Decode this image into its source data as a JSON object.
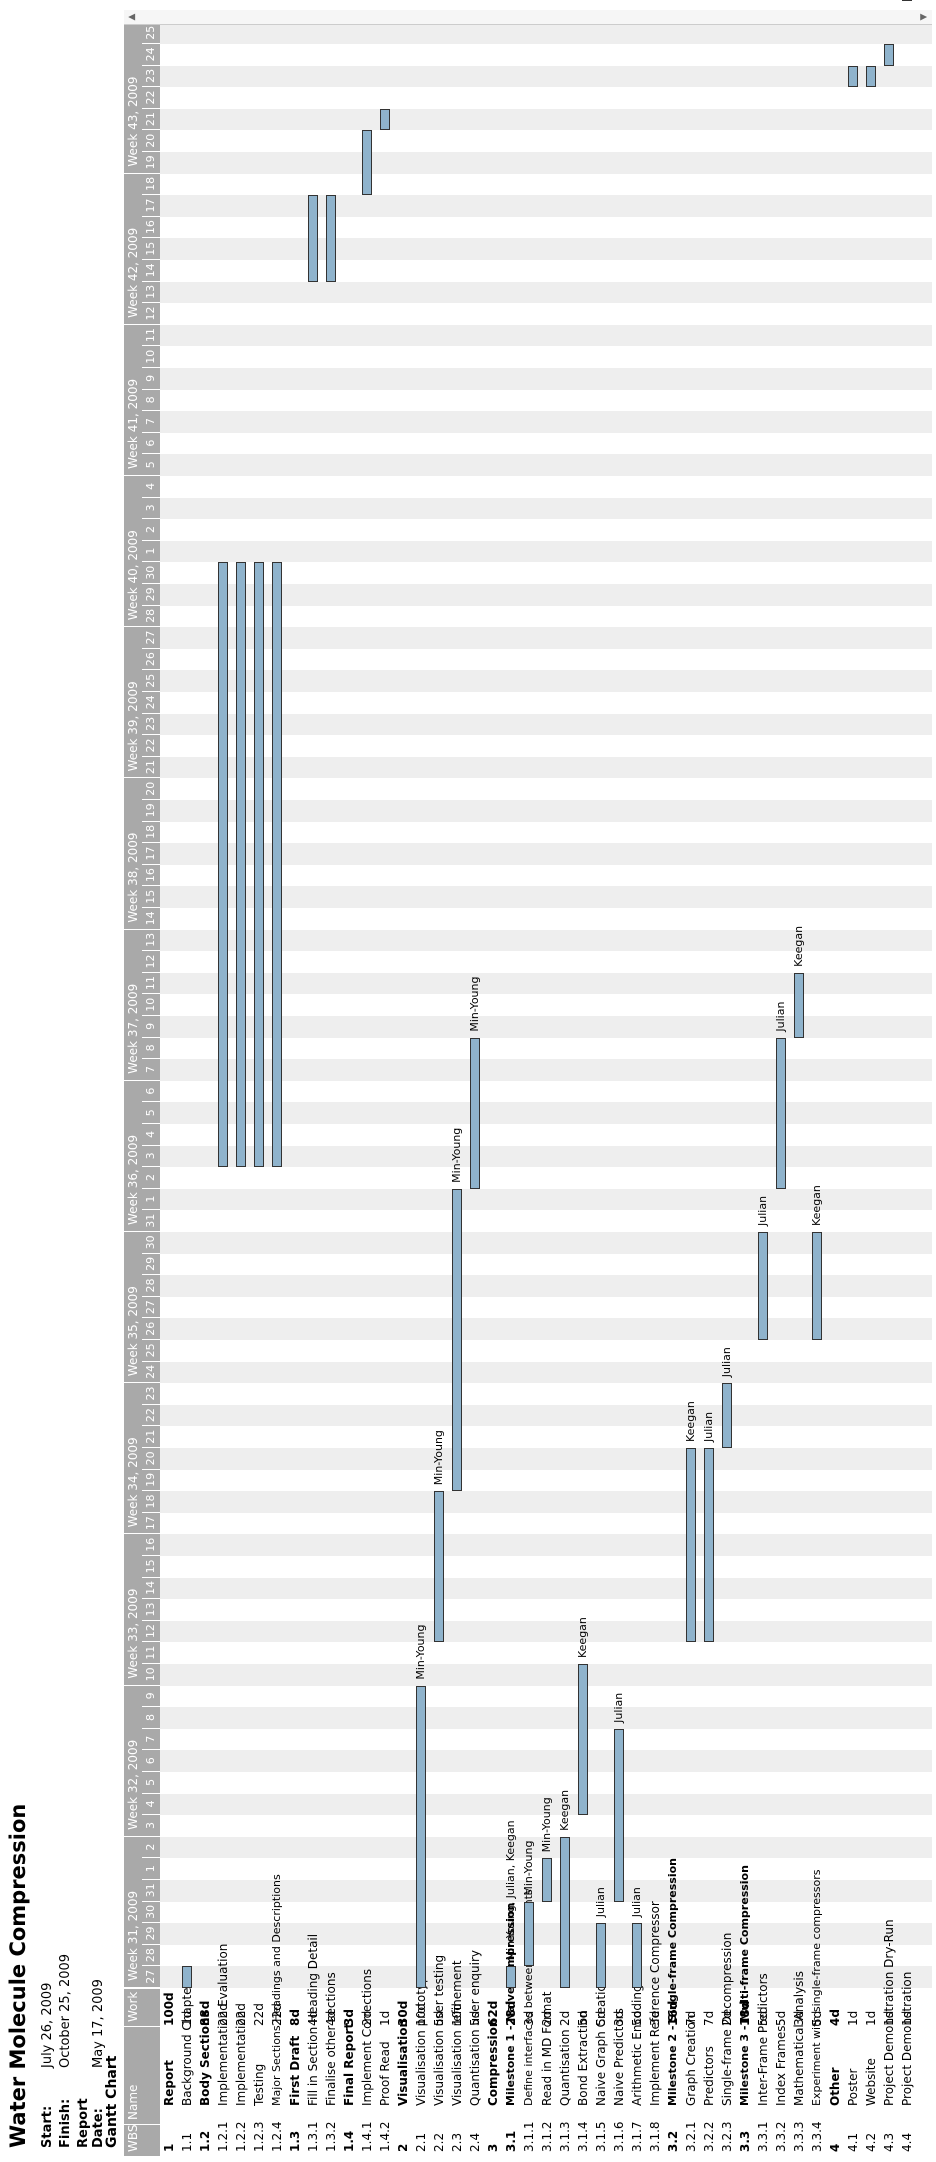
{
  "project": {
    "title": "Water Molecule Compression",
    "start_label": "Start:",
    "start": "July 26, 2009",
    "finish_label": "Finish:",
    "finish": "October 25, 2009",
    "report_label": "Report Date:",
    "report_date": "May 17, 2009"
  },
  "gantt": {
    "title": "Gantt Chart",
    "columns": {
      "wbs": "WBS",
      "name": "Name",
      "work": "Work"
    },
    "weeks": [
      "Week 31, 2009",
      "Week 32, 2009",
      "Week 33, 2009",
      "Week 34, 2009",
      "Week 35, 2009",
      "Week 36, 2009",
      "Week 37, 2009",
      "Week 38, 2009",
      "Week 39, 2009",
      "Week 40, 2009",
      "Week 41, 2009",
      "Week 42, 2009",
      "Week 43, 2009"
    ],
    "days": [
      "27",
      "28",
      "29",
      "30",
      "31",
      "1",
      "2",
      "3",
      "4",
      "5",
      "6",
      "7",
      "8",
      "9",
      "10",
      "11",
      "12",
      "13",
      "14",
      "15",
      "16",
      "17",
      "18",
      "19",
      "20",
      "21",
      "22",
      "23",
      "24",
      "25",
      "26",
      "27",
      "28",
      "29",
      "30",
      "31",
      "1",
      "2",
      "3",
      "4",
      "5",
      "6",
      "7",
      "8",
      "9",
      "10",
      "11",
      "12",
      "13",
      "14",
      "15",
      "16",
      "17",
      "18",
      "19",
      "20",
      "21",
      "22",
      "23",
      "24",
      "25",
      "26",
      "27",
      "28",
      "29",
      "30",
      "1",
      "2",
      "3",
      "4",
      "5",
      "6",
      "7",
      "8",
      "9",
      "10",
      "11",
      "12",
      "13",
      "14",
      "15",
      "16",
      "17",
      "18",
      "19",
      "20",
      "21",
      "22",
      "23",
      "24",
      "25"
    ],
    "tasks": [
      {
        "wbs": "1",
        "name": "Report",
        "work": "100d",
        "bold": true
      },
      {
        "wbs": "1.1",
        "name": "Background Chapter",
        "work": "1d",
        "bars": [
          [
            0,
            1
          ]
        ]
      },
      {
        "wbs": "1.2",
        "name": "Body Sections",
        "work": "88d",
        "bold": true
      },
      {
        "wbs": "1.2.1",
        "name": "Implementation Evaluation",
        "work": "22d",
        "bars": [
          [
            38,
            66
          ]
        ]
      },
      {
        "wbs": "1.2.2",
        "name": "Implementation",
        "work": "22d",
        "bars": [
          [
            38,
            66
          ]
        ]
      },
      {
        "wbs": "1.2.3",
        "name": "Testing",
        "work": "22d",
        "bars": [
          [
            38,
            66
          ]
        ]
      },
      {
        "wbs": "1.2.4",
        "name": "Major Sections Headings and Descriptions",
        "work": "22d",
        "bars": [
          [
            38,
            66
          ]
        ]
      },
      {
        "wbs": "1.3",
        "name": "First Draft",
        "work": "8d",
        "bold": true
      },
      {
        "wbs": "1.3.1",
        "name": "Fill in Section Heading Detail",
        "work": "4d",
        "bars": [
          [
            79,
            83
          ]
        ]
      },
      {
        "wbs": "1.3.2",
        "name": "Finalise other sections",
        "work": "4d",
        "bars": [
          [
            79,
            83
          ]
        ]
      },
      {
        "wbs": "1.4",
        "name": "Final Report",
        "work": "3d",
        "bold": true
      },
      {
        "wbs": "1.4.1",
        "name": "Implement Corrections",
        "work": "2d",
        "bars": [
          [
            83,
            86
          ]
        ]
      },
      {
        "wbs": "1.4.2",
        "name": "Proof Read",
        "work": "1d",
        "bars": [
          [
            86,
            87
          ]
        ]
      },
      {
        "wbs": "2",
        "name": "Visualisation",
        "work": "30d",
        "bold": true
      },
      {
        "wbs": "2.1",
        "name": "Visualisation prototype",
        "work": "10d",
        "bars": [
          [
            0,
            14
          ]
        ],
        "res": "Min-Young"
      },
      {
        "wbs": "2.2",
        "name": "Visualisation user testing",
        "work": "5d",
        "bars": [
          [
            16,
            23
          ]
        ],
        "res": "Min-Young"
      },
      {
        "wbs": "2.3",
        "name": "Visualisation refinement",
        "work": "10d",
        "bars": [
          [
            23,
            37
          ]
        ],
        "res": "Min-Young"
      },
      {
        "wbs": "2.4",
        "name": "Quantisation user enquiry",
        "work": "5d",
        "bars": [
          [
            37,
            44
          ]
        ],
        "res": "Min-Young"
      },
      {
        "wbs": "3",
        "name": "Compression",
        "work": "62d",
        "bold": true
      },
      {
        "wbs": "3.1",
        "name": "Milestone 1 - Naive Compression",
        "work": "28d",
        "bold": true,
        "bars": [
          [
            0,
            1
          ]
        ],
        "res": "Min-Young, Julian, Keegan"
      },
      {
        "wbs": "3.1.1",
        "name": "Define interfaces between components",
        "work": "3d",
        "bars": [
          [
            1,
            4
          ]
        ],
        "res": "Min-Young"
      },
      {
        "wbs": "3.1.2",
        "name": "Read in MD Format",
        "work": "2d",
        "bars": [
          [
            4,
            6
          ]
        ],
        "res": "Min-Young"
      },
      {
        "wbs": "3.1.3",
        "name": "Quantisation",
        "work": "2d",
        "bars": [
          [
            0,
            7
          ]
        ],
        "res": "Keegan"
      },
      {
        "wbs": "3.1.4",
        "name": "Bond Extraction",
        "work": "5d",
        "bars": [
          [
            8,
            15
          ]
        ],
        "res": "Keegan"
      },
      {
        "wbs": "3.1.5",
        "name": "Naive Graph Creation",
        "work": "5d",
        "bars": [
          [
            0,
            3
          ]
        ],
        "res": "Julian"
      },
      {
        "wbs": "3.1.6",
        "name": "Naive Predictors",
        "work": "3d",
        "bars": [
          [
            4,
            12
          ]
        ],
        "res": "Julian"
      },
      {
        "wbs": "3.1.7",
        "name": "Arithmetic Encoding",
        "work": "5d",
        "bars": [
          [
            0,
            3
          ]
        ],
        "res": "Julian"
      },
      {
        "wbs": "3.1.8",
        "name": "Implement Reference Compressor",
        "work": "3d"
      },
      {
        "wbs": "3.2",
        "name": "Milestone 2 - Single-frame Compression",
        "work": "16d",
        "bold": true
      },
      {
        "wbs": "3.2.1",
        "name": "Graph Creation",
        "work": "7d",
        "bars": [
          [
            16,
            25
          ]
        ],
        "res": "Keegan"
      },
      {
        "wbs": "3.2.2",
        "name": "Predictors",
        "work": "7d",
        "bars": [
          [
            16,
            25
          ]
        ],
        "res": "Julian"
      },
      {
        "wbs": "3.2.3",
        "name": "Single-frame Decompression",
        "work": "2d",
        "bars": [
          [
            25,
            28
          ]
        ],
        "res": "Julian"
      },
      {
        "wbs": "3.3",
        "name": "Milestone 3 - Multi-frame Compression",
        "work": "18d",
        "bold": true
      },
      {
        "wbs": "3.3.1",
        "name": "Inter-Frame Predictors",
        "work": "5d",
        "bars": [
          [
            30,
            35
          ]
        ],
        "res": "Julian"
      },
      {
        "wbs": "3.3.2",
        "name": "Index Frames",
        "work": "5d",
        "bars": [
          [
            37,
            44
          ]
        ],
        "res": "Julian"
      },
      {
        "wbs": "3.3.3",
        "name": "Mathematical Analysis",
        "work": "3d",
        "bars": [
          [
            44,
            47
          ]
        ],
        "res": "Keegan"
      },
      {
        "wbs": "3.3.4",
        "name": "Experiment with single-frame compressors",
        "work": "5d",
        "bars": [
          [
            30,
            35
          ]
        ],
        "res": "Keegan"
      },
      {
        "wbs": "4",
        "name": "Other",
        "work": "4d",
        "bold": true
      },
      {
        "wbs": "4.1",
        "name": "Poster",
        "work": "1d",
        "bars": [
          [
            88,
            89
          ]
        ]
      },
      {
        "wbs": "4.2",
        "name": "Website",
        "work": "1d",
        "bars": [
          [
            88,
            89
          ]
        ]
      },
      {
        "wbs": "4.3",
        "name": "Project Demonstration Dry-Run",
        "work": "1d",
        "bars": [
          [
            89,
            90
          ]
        ]
      },
      {
        "wbs": "4.4",
        "name": "Project Demonstration",
        "work": "1d",
        "bars": [
          [
            92,
            93
          ]
        ]
      }
    ]
  },
  "colors": {
    "header": "#a9a9a9",
    "bar": "#8fb3cc",
    "stripe": "#eeeeee"
  }
}
